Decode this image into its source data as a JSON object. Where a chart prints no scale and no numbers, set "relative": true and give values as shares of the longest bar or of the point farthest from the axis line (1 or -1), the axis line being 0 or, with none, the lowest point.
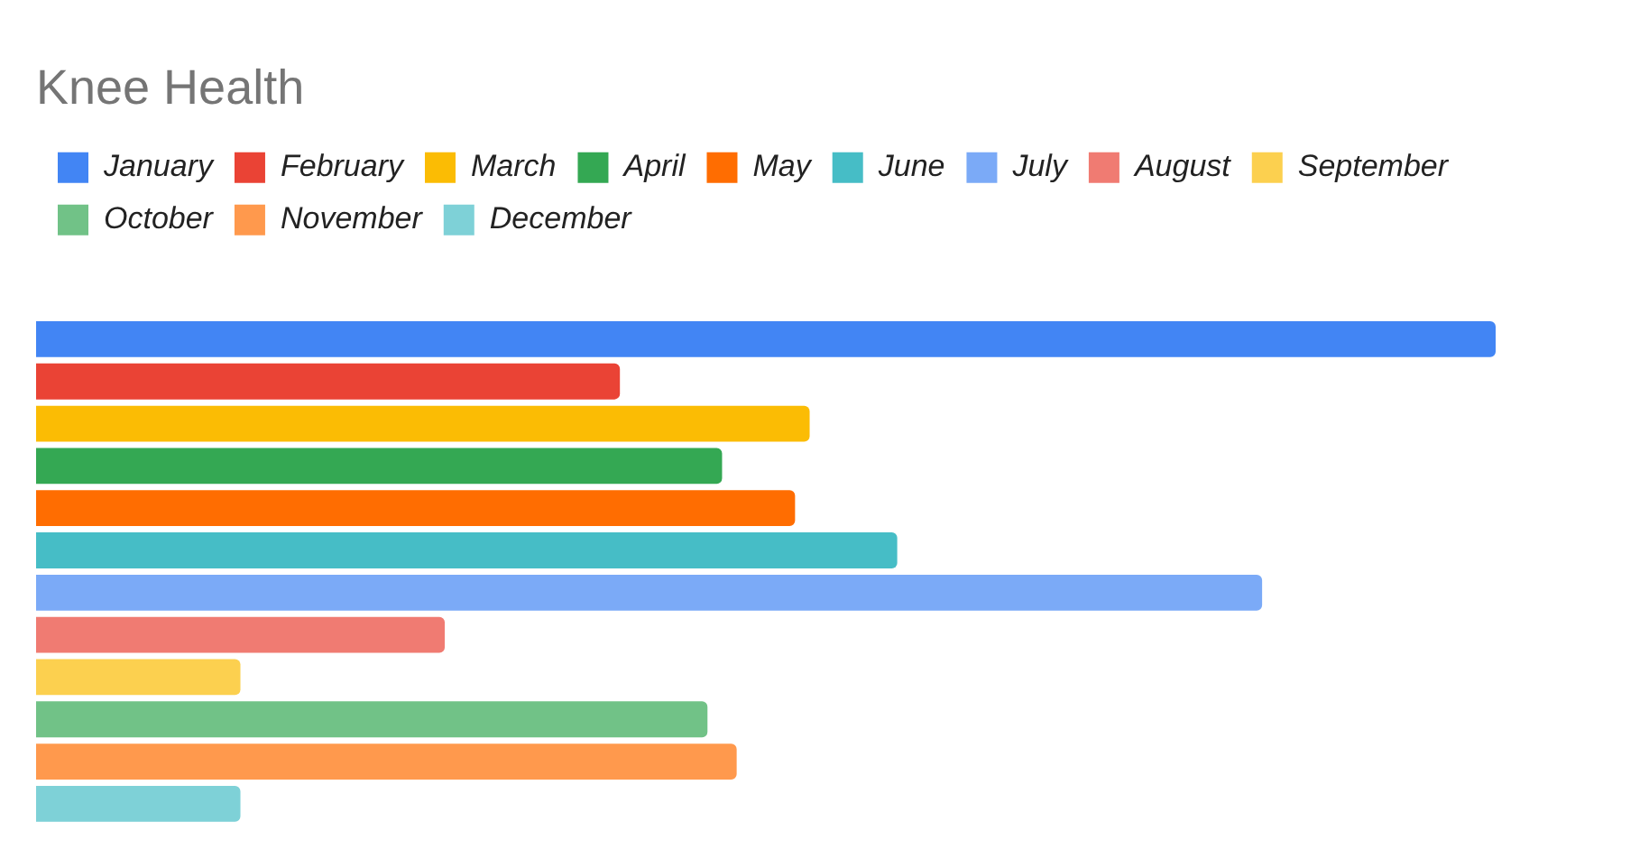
{
  "chart_data": {
    "type": "bar",
    "title": "Knee Health",
    "orientation": "horizontal",
    "relative": true,
    "legend": "top left",
    "categories": [
      null
    ],
    "series": [
      {
        "name": "January",
        "color": "#4285f4",
        "values": [
          1
        ]
      },
      {
        "name": "February",
        "color": "#ea4335",
        "values": [
          0.4
        ]
      },
      {
        "name": "March",
        "color": "#fbbc04",
        "values": [
          0.53
        ]
      },
      {
        "name": "April",
        "color": "#34a853",
        "values": [
          0.47
        ]
      },
      {
        "name": "May",
        "color": "#ff6d01",
        "values": [
          0.52
        ]
      },
      {
        "name": "June",
        "color": "#46bdc6",
        "values": [
          0.59
        ]
      },
      {
        "name": "July",
        "color": "#7baaf7",
        "values": [
          0.84
        ]
      },
      {
        "name": "August",
        "color": "#f07b72",
        "values": [
          0.28
        ]
      },
      {
        "name": "September",
        "color": "#fcd04f",
        "values": [
          0.14
        ]
      },
      {
        "name": "October",
        "color": "#71c287",
        "values": [
          0.46
        ]
      },
      {
        "name": "November",
        "color": "#ff994d",
        "values": [
          0.48
        ]
      },
      {
        "name": "December",
        "color": "#7ed1d7",
        "values": [
          0.14
        ]
      }
    ]
  }
}
